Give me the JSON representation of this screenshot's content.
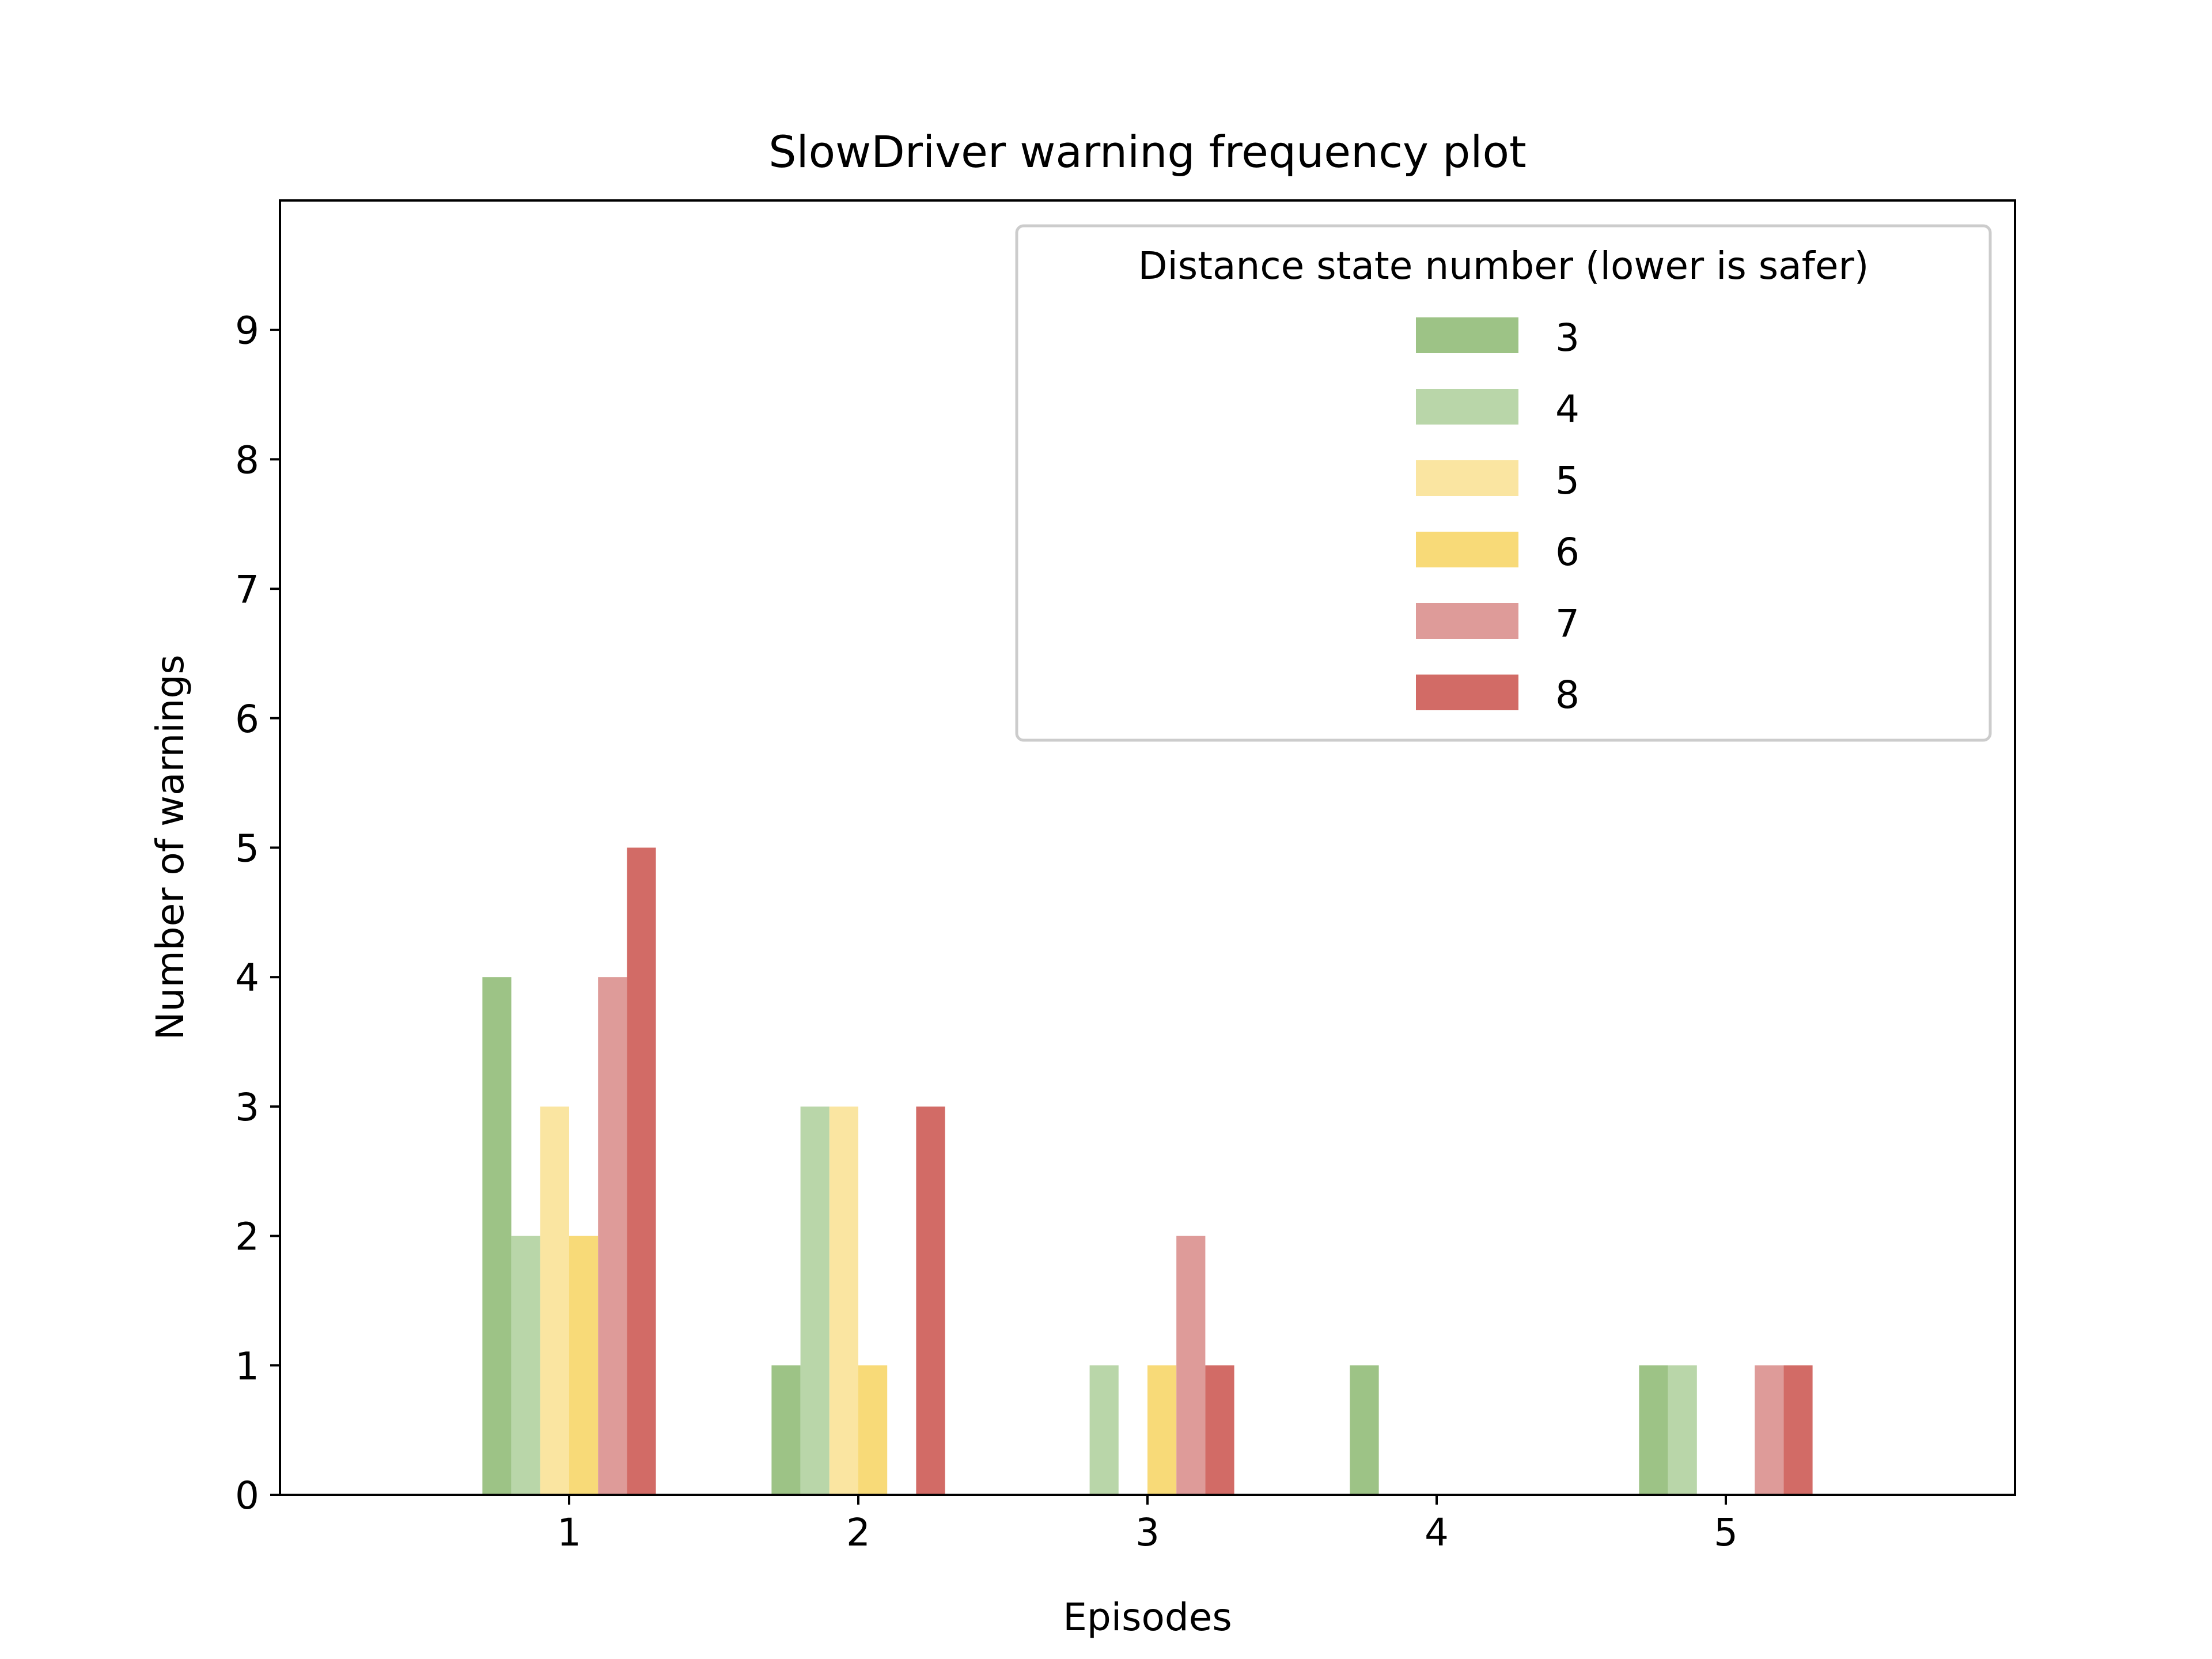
{
  "chart_data": {
    "type": "bar",
    "title": "SlowDriver warning frequency plot",
    "xlabel": "Episodes",
    "ylabel": "Number of warnings",
    "categories": [
      "1",
      "2",
      "3",
      "4",
      "5"
    ],
    "xlim": [
      0,
      6
    ],
    "ylim": [
      0,
      10
    ],
    "yticks": [
      0,
      1,
      2,
      3,
      4,
      5,
      6,
      7,
      8,
      9
    ],
    "grid": false,
    "legend": {
      "title": "Distance state number (lower is safer)",
      "placement": "top-right"
    },
    "series": [
      {
        "name": "3",
        "color": "#9dc386",
        "values": [
          4,
          1,
          0,
          1,
          1
        ]
      },
      {
        "name": "4",
        "color": "#b9d6a9",
        "values": [
          2,
          3,
          1,
          0,
          1
        ]
      },
      {
        "name": "5",
        "color": "#fae5a1",
        "values": [
          3,
          3,
          0,
          0,
          0
        ]
      },
      {
        "name": "6",
        "color": "#f8da78",
        "values": [
          2,
          1,
          1,
          0,
          0
        ]
      },
      {
        "name": "7",
        "color": "#de9b99",
        "values": [
          4,
          0,
          2,
          0,
          1
        ]
      },
      {
        "name": "8",
        "color": "#d26b66",
        "values": [
          5,
          3,
          1,
          0,
          1
        ]
      }
    ]
  }
}
